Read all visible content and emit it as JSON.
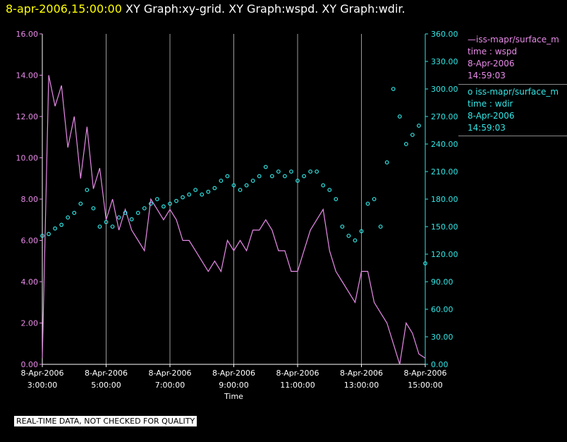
{
  "header": {
    "timestamp": "8-apr-2006,15:00:00",
    "graphs": "XY Graph:xy-grid.  XY Graph:wspd.  XY Graph:wdir."
  },
  "legend": [
    {
      "marker": "—",
      "name": "iss-mapr/surface_m",
      "desc": "time : wspd",
      "date": "8-Apr-2006",
      "time": "14:59:03",
      "color": "#e88be8"
    },
    {
      "marker": "o",
      "name": "iss-mapr/surface_m",
      "desc": "time : wdir",
      "date": "8-Apr-2006",
      "time": "14:59:03",
      "color": "#33e6e6"
    }
  ],
  "disclaimer": "REAL-TIME DATA, NOT CHECKED FOR QUALITY",
  "chart_data": {
    "type": "line",
    "xlabel": "Time",
    "x_ticks": [
      {
        "date": "8-Apr-2006",
        "time": "3:00:00"
      },
      {
        "date": "8-Apr-2006",
        "time": "5:00:00"
      },
      {
        "date": "8-Apr-2006",
        "time": "7:00:00"
      },
      {
        "date": "8-Apr-2006",
        "time": "9:00:00"
      },
      {
        "date": "8-Apr-2006",
        "time": "11:00:00"
      },
      {
        "date": "8-Apr-2006",
        "time": "13:00:00"
      },
      {
        "date": "8-Apr-2006",
        "time": "15:00:00"
      }
    ],
    "xlim_hours": [
      3.0,
      15.0
    ],
    "y_left": {
      "ticks": [
        "0.00",
        "2.00",
        "4.00",
        "6.00",
        "8.00",
        "10.00",
        "12.00",
        "14.00",
        "16.00"
      ],
      "ylim": [
        0,
        16
      ]
    },
    "y_right": {
      "ticks": [
        "0.00",
        "30.00",
        "60.00",
        "90.00",
        "120.00",
        "150.00",
        "180.00",
        "210.00",
        "240.00",
        "270.00",
        "300.00",
        "330.00",
        "360.00"
      ],
      "ylim": [
        0,
        360
      ]
    },
    "grid": "vertical",
    "series": [
      {
        "name": "iss-mapr/surface_m time : wspd",
        "axis": "left",
        "style": "line",
        "color": "#e88be8",
        "x_hours": [
          3.0,
          3.2,
          3.4,
          3.6,
          3.8,
          4.0,
          4.2,
          4.4,
          4.6,
          4.8,
          5.0,
          5.2,
          5.4,
          5.6,
          5.8,
          6.0,
          6.2,
          6.4,
          6.6,
          6.8,
          7.0,
          7.2,
          7.4,
          7.6,
          7.8,
          8.0,
          8.2,
          8.4,
          8.6,
          8.8,
          9.0,
          9.2,
          9.4,
          9.6,
          9.8,
          10.0,
          10.2,
          10.4,
          10.6,
          10.8,
          11.0,
          11.2,
          11.4,
          11.6,
          11.8,
          12.0,
          12.2,
          12.4,
          12.6,
          12.8,
          13.0,
          13.2,
          13.4,
          13.6,
          13.8,
          14.0,
          14.2,
          14.4,
          14.6,
          14.8,
          15.0
        ],
        "values": [
          0.3,
          14.0,
          12.5,
          13.5,
          10.5,
          12.0,
          9.0,
          11.5,
          8.5,
          9.5,
          7.0,
          8.0,
          6.5,
          7.5,
          6.5,
          6.0,
          5.5,
          8.0,
          7.5,
          7.0,
          7.5,
          7.0,
          6.0,
          6.0,
          5.5,
          5.0,
          4.5,
          5.0,
          4.5,
          6.0,
          5.5,
          6.0,
          5.5,
          6.5,
          6.5,
          7.0,
          6.5,
          5.5,
          5.5,
          4.5,
          4.5,
          5.5,
          6.5,
          7.0,
          7.5,
          5.5,
          4.5,
          4.0,
          3.5,
          3.0,
          4.5,
          4.5,
          3.0,
          2.5,
          2.0,
          1.0,
          0.0,
          2.0,
          1.5,
          0.5,
          0.3
        ]
      },
      {
        "name": "iss-mapr/surface_m time : wdir",
        "axis": "right",
        "style": "markers",
        "color": "#33e6e6",
        "x_hours": [
          3.0,
          3.2,
          3.4,
          3.6,
          3.8,
          4.0,
          4.2,
          4.4,
          4.6,
          4.8,
          5.0,
          5.2,
          5.4,
          5.6,
          5.8,
          6.0,
          6.2,
          6.4,
          6.6,
          6.8,
          7.0,
          7.2,
          7.4,
          7.6,
          7.8,
          8.0,
          8.2,
          8.4,
          8.6,
          8.8,
          9.0,
          9.2,
          9.4,
          9.6,
          9.8,
          10.0,
          10.2,
          10.4,
          10.6,
          10.8,
          11.0,
          11.2,
          11.4,
          11.6,
          11.8,
          12.0,
          12.2,
          12.4,
          12.6,
          12.8,
          13.0,
          13.2,
          13.4,
          13.6,
          13.8,
          14.0,
          14.2,
          14.4,
          14.6,
          14.8,
          15.0
        ],
        "values": [
          140,
          142,
          148,
          152,
          160,
          165,
          175,
          190,
          170,
          150,
          155,
          150,
          160,
          165,
          158,
          165,
          170,
          175,
          180,
          172,
          175,
          178,
          182,
          185,
          190,
          185,
          188,
          192,
          200,
          205,
          195,
          190,
          195,
          200,
          205,
          215,
          205,
          210,
          205,
          210,
          200,
          205,
          210,
          210,
          195,
          190,
          180,
          150,
          140,
          135,
          145,
          175,
          180,
          150,
          220,
          300,
          270,
          240,
          250,
          260,
          110
        ]
      }
    ]
  }
}
